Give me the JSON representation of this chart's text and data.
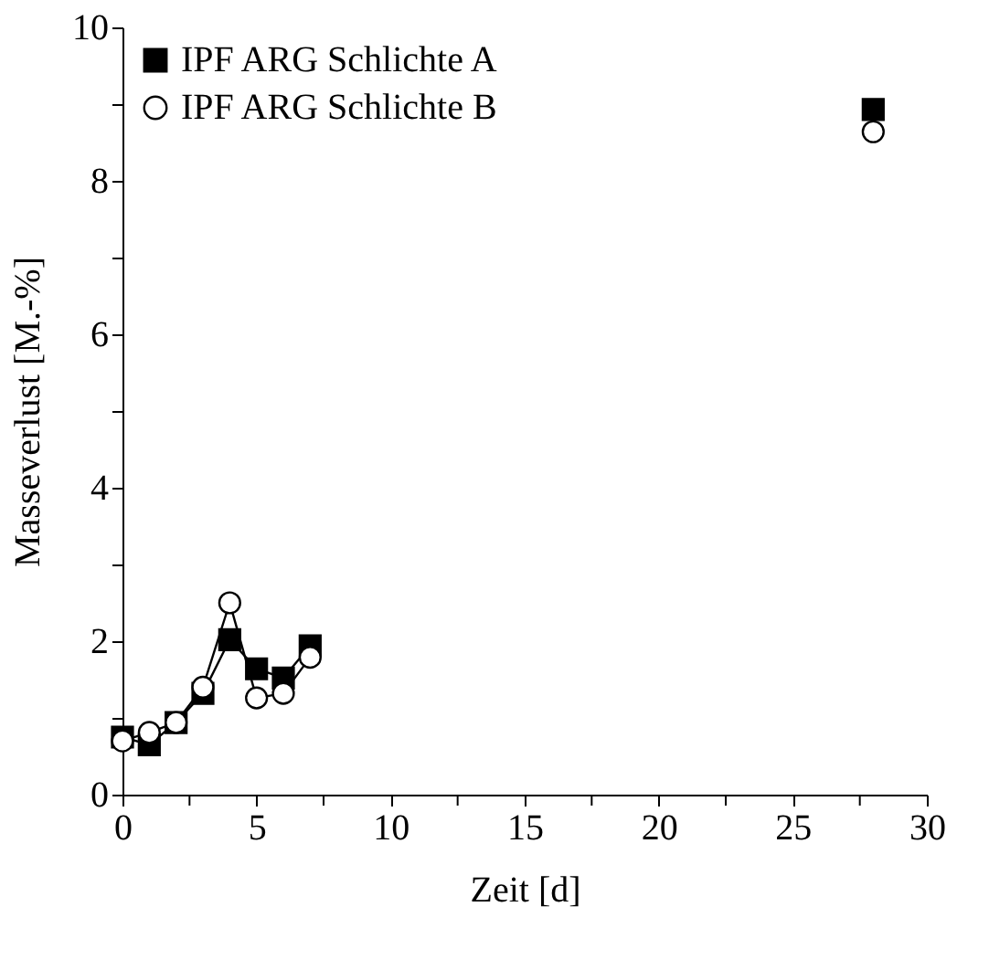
{
  "chart_data": {
    "type": "line",
    "xlabel": "Zeit [d]",
    "ylabel": "Masseverlust [M.-%]",
    "x": [
      0,
      1,
      2,
      3,
      4,
      5,
      6,
      7
    ],
    "series": [
      {
        "name": "IPF ARG Schlichte A",
        "color": "#000000",
        "marker": "square",
        "values": [
          0.75,
          0.65,
          0.94,
          1.32,
          2.02,
          1.64,
          1.52,
          1.94
        ]
      },
      {
        "name": "IPF ARG Schlichte B",
        "color": "#ffffff",
        "marker": "circle",
        "values": [
          0.7,
          0.81,
          0.94,
          1.4,
          2.5,
          1.26,
          1.32,
          1.79
        ]
      },
      {
        "type": "scatter",
        "color": "#000000",
        "marker": "square",
        "x": [
          28
        ],
        "values": [
          8.93
        ]
      },
      {
        "type": "scatter",
        "color": "#ffffff",
        "marker": "circle",
        "x": [
          28
        ],
        "values": [
          8.64
        ]
      }
    ],
    "xlim": [
      0,
      30
    ],
    "ylim": [
      0,
      10
    ],
    "xticks": [
      0,
      {
        "value": 2.5,
        "label": null
      },
      5,
      {
        "value": 7.5,
        "label": null
      },
      10,
      {
        "value": 12.5,
        "label": null
      },
      15,
      {
        "value": 17.5,
        "label": null
      },
      20,
      {
        "value": 22.5,
        "label": null
      },
      25,
      {
        "value": 27.5,
        "label": null
      },
      30
    ],
    "yticks": [
      0,
      {
        "value": 1,
        "label": null
      },
      2,
      {
        "value": 3,
        "label": null
      },
      4,
      {
        "value": 5,
        "label": null
      },
      6,
      {
        "value": 7,
        "label": null
      },
      8,
      {
        "value": 9,
        "label": null
      },
      10
    ],
    "grid": false,
    "legend": "top left",
    "line_style": "solid"
  }
}
